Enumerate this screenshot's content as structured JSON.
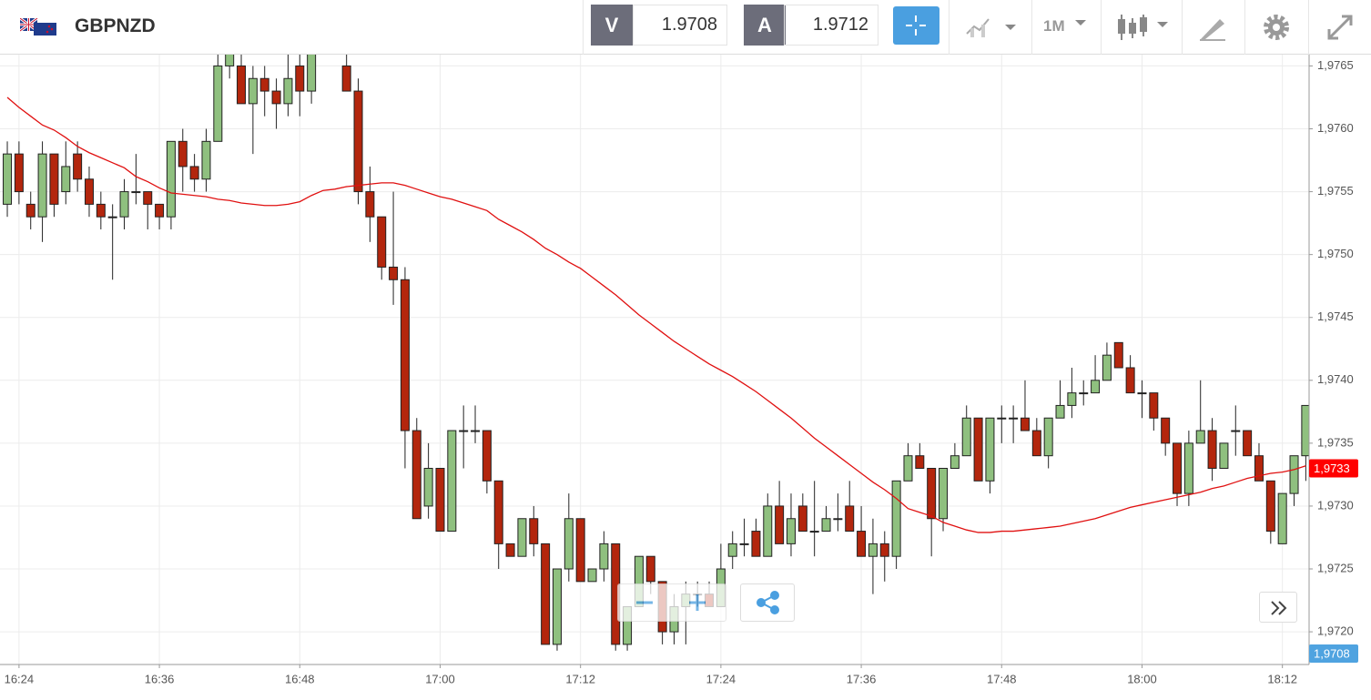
{
  "toolbar": {
    "symbol": "GBPNZD",
    "bid_label": "V",
    "bid": 1.9708,
    "ask_label": "A",
    "ask": 1.9712,
    "timeframe": "1M"
  },
  "chart_data": {
    "type": "candlestick",
    "categories": [
      null,
      "16:24",
      null,
      null,
      null,
      null,
      null,
      null,
      null,
      null,
      null,
      null,
      null,
      "16:36",
      null,
      null,
      null,
      null,
      null,
      null,
      null,
      null,
      null,
      null,
      null,
      "16:48",
      null,
      null,
      null,
      null,
      null,
      null,
      null,
      null,
      null,
      null,
      null,
      "17:00",
      null,
      null,
      null,
      null,
      null,
      null,
      null,
      null,
      null,
      null,
      null,
      "17:12",
      null,
      null,
      null,
      null,
      null,
      null,
      null,
      null,
      null,
      null,
      null,
      "17:24",
      null,
      null,
      null,
      null,
      null,
      null,
      null,
      null,
      null,
      null,
      null,
      "17:36",
      null,
      null,
      null,
      null,
      null,
      null,
      null,
      null,
      null,
      null,
      null,
      "17:48",
      null,
      null,
      null,
      null,
      null,
      null,
      null,
      null,
      null,
      null,
      null,
      "18:00",
      null,
      null,
      null,
      null,
      null,
      null,
      null,
      null,
      null,
      null,
      null,
      "18:12",
      null,
      null
    ],
    "open": [
      1.9754,
      1.9758,
      1.9754,
      1.9753,
      1.9758,
      1.9755,
      1.9758,
      1.9756,
      1.9754,
      1.9753,
      1.9753,
      1.9755,
      1.9755,
      1.9754,
      1.9753,
      1.9759,
      1.9757,
      1.9756,
      1.9759,
      1.9765,
      1.9765,
      1.9762,
      1.9764,
      1.9763,
      1.9762,
      1.9765,
      1.9763,
      null,
      null,
      1.9765,
      1.9763,
      1.9755,
      1.9753,
      1.9749,
      1.9748,
      1.9736,
      1.973,
      1.9733,
      1.9728,
      1.9736,
      1.9736,
      1.9736,
      1.9732,
      1.9727,
      1.9726,
      1.9729,
      1.9727,
      1.9719,
      1.9725,
      1.9729,
      1.9724,
      1.9725,
      1.9727,
      1.9719,
      1.9722,
      1.9726,
      1.9724,
      1.972,
      1.9722,
      1.9723,
      1.9723,
      1.9722,
      1.9726,
      1.9727,
      1.9728,
      1.9726,
      1.973,
      1.9727,
      1.973,
      1.9728,
      1.9728,
      1.9729,
      1.973,
      1.9728,
      1.9726,
      1.9727,
      1.9726,
      1.9732,
      1.9734,
      1.9733,
      1.9729,
      1.9733,
      1.9734,
      1.9737,
      1.9732,
      1.9737,
      1.9737,
      1.9737,
      1.9736,
      1.9734,
      1.9737,
      1.9738,
      1.9739,
      1.9739,
      1.974,
      1.9743,
      1.9741,
      1.9739,
      1.9739,
      1.9737,
      1.9735,
      1.9731,
      1.9735,
      1.9736,
      1.9733,
      1.9736,
      1.9736,
      1.9734,
      1.9732,
      1.9727,
      1.9731,
      1.9734
    ],
    "high": [
      1.9759,
      1.9759,
      1.9755,
      1.9759,
      1.9758,
      1.9759,
      1.9759,
      1.9757,
      1.9755,
      1.9754,
      1.9756,
      1.9758,
      1.9755,
      1.9754,
      1.9759,
      1.976,
      1.9758,
      1.976,
      1.9766,
      1.9766,
      1.9766,
      1.9765,
      1.9765,
      1.9764,
      1.9766,
      1.9766,
      1.9766,
      null,
      null,
      1.9766,
      1.9764,
      1.9757,
      1.9753,
      1.9755,
      1.9749,
      1.9737,
      1.9735,
      1.9733,
      1.9736,
      1.9738,
      1.9738,
      1.9736,
      1.9732,
      1.9727,
      1.9729,
      1.973,
      1.9727,
      1.9725,
      1.9731,
      1.9729,
      1.9725,
      1.9728,
      1.9727,
      1.9722,
      1.9726,
      1.9726,
      1.9724,
      1.9723,
      1.9724,
      1.9724,
      1.9724,
      1.9727,
      1.9728,
      1.9729,
      1.9729,
      1.9731,
      1.9732,
      1.9731,
      1.9731,
      1.9732,
      1.973,
      1.9731,
      1.9732,
      1.973,
      1.9729,
      1.9728,
      1.9732,
      1.9735,
      1.9735,
      1.9733,
      1.9733,
      1.9735,
      1.9738,
      1.9737,
      1.9737,
      1.9738,
      1.9738,
      1.974,
      1.9737,
      1.9737,
      1.974,
      1.9741,
      1.974,
      1.9742,
      1.9743,
      1.9743,
      1.9742,
      1.974,
      1.9739,
      1.9737,
      1.9735,
      1.9736,
      1.974,
      1.9737,
      1.9735,
      1.9738,
      1.9736,
      1.9735,
      1.9732,
      1.9731,
      1.9734,
      1.9738
    ],
    "low": [
      1.9753,
      1.9754,
      1.9752,
      1.9751,
      1.9753,
      1.9754,
      1.9755,
      1.9753,
      1.9752,
      1.9748,
      1.9752,
      1.9754,
      1.9752,
      1.9752,
      1.9752,
      1.9755,
      1.9755,
      1.9755,
      1.9759,
      1.9764,
      1.9762,
      1.9758,
      1.9761,
      1.976,
      1.9761,
      1.9761,
      1.9762,
      null,
      null,
      1.9763,
      1.9754,
      1.9751,
      1.9748,
      1.9746,
      1.9733,
      1.9729,
      1.9729,
      1.9728,
      1.9728,
      1.9733,
      1.9735,
      1.9731,
      1.9725,
      1.9726,
      1.9726,
      1.9726,
      1.9719,
      1.97185,
      1.9724,
      1.9724,
      1.9724,
      1.9724,
      1.97185,
      1.97185,
      1.9722,
      1.9723,
      1.9719,
      1.9719,
      1.9719,
      1.9722,
      1.9722,
      1.9722,
      1.9725,
      1.9726,
      1.9726,
      1.9726,
      1.9727,
      1.9726,
      1.9728,
      1.9726,
      1.9728,
      1.9728,
      1.9728,
      1.9726,
      1.9723,
      1.9724,
      1.9725,
      1.9732,
      1.9733,
      1.9726,
      1.9728,
      1.9733,
      1.9734,
      1.9732,
      1.9731,
      1.9735,
      1.9735,
      1.9736,
      1.9734,
      1.9733,
      1.9737,
      1.9737,
      1.9738,
      1.9739,
      1.974,
      1.9741,
      1.9739,
      1.9737,
      1.9736,
      1.9734,
      1.973,
      1.973,
      1.9735,
      1.9732,
      1.9733,
      1.9734,
      1.9734,
      1.9732,
      1.9727,
      1.9727,
      1.973,
      1.9732
    ],
    "close": [
      1.9758,
      1.9755,
      1.9753,
      1.9758,
      1.9754,
      1.9757,
      1.9756,
      1.9754,
      1.9753,
      1.9753,
      1.9755,
      1.9755,
      1.9754,
      1.9753,
      1.9759,
      1.9757,
      1.9756,
      1.9759,
      1.9765,
      1.9766,
      1.9762,
      1.9764,
      1.9763,
      1.9762,
      1.9764,
      1.9763,
      1.9766,
      null,
      null,
      1.9763,
      1.9755,
      1.9753,
      1.9749,
      1.9748,
      1.9736,
      1.9729,
      1.9733,
      1.9728,
      1.9736,
      1.9736,
      1.9736,
      1.9732,
      1.9727,
      1.9726,
      1.9729,
      1.9727,
      1.9719,
      1.9725,
      1.9729,
      1.9724,
      1.9725,
      1.9727,
      1.9719,
      1.9722,
      1.9726,
      1.9724,
      1.972,
      1.9722,
      1.9723,
      1.9723,
      1.9722,
      1.9725,
      1.9727,
      1.9727,
      1.9726,
      1.973,
      1.9727,
      1.9729,
      1.9728,
      1.9728,
      1.9729,
      1.9729,
      1.9728,
      1.9726,
      1.9727,
      1.9726,
      1.9732,
      1.9734,
      1.9733,
      1.9729,
      1.9733,
      1.9734,
      1.9737,
      1.9732,
      1.9737,
      1.9737,
      1.9737,
      1.9736,
      1.9734,
      1.9737,
      1.9738,
      1.9739,
      1.9739,
      1.974,
      1.9742,
      1.9741,
      1.9739,
      1.9739,
      1.9737,
      1.9735,
      1.9731,
      1.9735,
      1.9736,
      1.9733,
      1.9735,
      1.9736,
      1.9734,
      1.9732,
      1.9728,
      1.9731,
      1.9734,
      1.9738
    ],
    "up_color": "#8fc07f",
    "down_color": "#b3260d",
    "moving_average": {
      "color": "#e01010",
      "values": [
        1.97625,
        1.97617,
        1.9761,
        1.97603,
        1.97599,
        1.97593,
        1.97586,
        1.97581,
        1.97577,
        1.97573,
        1.97569,
        1.97562,
        1.97558,
        1.97553,
        1.97549,
        1.97548,
        1.97547,
        1.97546,
        1.97544,
        1.97543,
        1.97541,
        1.9754,
        1.97539,
        1.97539,
        1.9754,
        1.97542,
        1.97547,
        1.97551,
        1.97552,
        1.97554,
        1.97555,
        1.97556,
        1.97557,
        1.97557,
        1.97555,
        1.97552,
        1.97549,
        1.97546,
        1.97544,
        1.97541,
        1.97538,
        1.97535,
        1.97528,
        1.97523,
        1.97518,
        1.97512,
        1.97505,
        1.975,
        1.97494,
        1.97489,
        1.97482,
        1.97475,
        1.97468,
        1.9746,
        1.97452,
        1.97445,
        1.97438,
        1.97431,
        1.97425,
        1.97419,
        1.97413,
        1.97408,
        1.97403,
        1.97397,
        1.97391,
        1.97384,
        1.97377,
        1.9737,
        1.97362,
        1.97354,
        1.97347,
        1.9734,
        1.97333,
        1.97326,
        1.97319,
        1.97313,
        1.97306,
        1.97298,
        1.97295,
        1.97292,
        1.97287,
        1.97284,
        1.97281,
        1.97279,
        1.97279,
        1.9728,
        1.9728,
        1.97281,
        1.97282,
        1.97283,
        1.97284,
        1.97286,
        1.97288,
        1.9729,
        1.97293,
        1.97296,
        1.97299,
        1.97301,
        1.97303,
        1.97305,
        1.97307,
        1.97309,
        1.97311,
        1.97314,
        1.97316,
        1.97319,
        1.97322,
        1.97324,
        1.97326,
        1.97327,
        1.97329,
        1.97332
      ]
    },
    "ylim": [
      1.97174,
      1.97659
    ],
    "yticks": [
      {
        "value": 1.972,
        "label": "1,9720"
      },
      {
        "value": 1.9725,
        "label": "1,9725"
      },
      {
        "value": 1.973,
        "label": "1,9730"
      },
      {
        "value": 1.9735,
        "label": "1,9735"
      },
      {
        "value": 1.974,
        "label": "1,9740"
      },
      {
        "value": 1.9745,
        "label": "1,9745"
      },
      {
        "value": 1.975,
        "label": "1,9750"
      },
      {
        "value": 1.9755,
        "label": "1,9755"
      },
      {
        "value": 1.976,
        "label": "1,9760"
      },
      {
        "value": 1.9765,
        "label": "1,9765"
      }
    ],
    "grid": true,
    "price_markers": [
      {
        "value": 1.9733,
        "label": "1,9733",
        "color": "#ff0000"
      },
      {
        "value": 1.9708,
        "label": "1,9708",
        "color": "#4fa3e0"
      }
    ]
  }
}
